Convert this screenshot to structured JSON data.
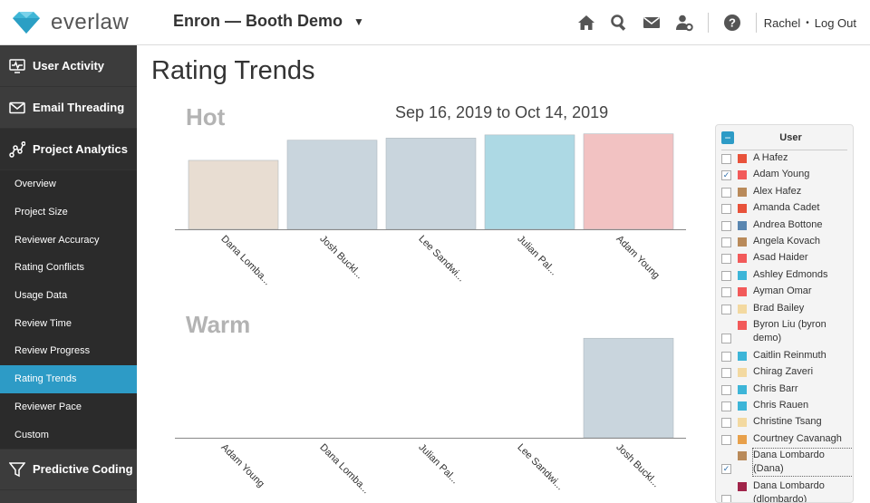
{
  "app": {
    "logo_text": "everlaw",
    "project_name": "Enron — Booth Demo",
    "user_name": "Rachel",
    "separator": "•",
    "logout_label": "Log Out"
  },
  "sidebar": {
    "main_items": [
      {
        "label": "User Activity",
        "icon": "monitor-icon"
      },
      {
        "label": "Email Threading",
        "icon": "envelope-icon"
      },
      {
        "label": "Project Analytics",
        "icon": "analytics-icon"
      }
    ],
    "sub_items": [
      {
        "label": "Overview",
        "active": false
      },
      {
        "label": "Project Size",
        "active": false
      },
      {
        "label": "Reviewer Accuracy",
        "active": false
      },
      {
        "label": "Rating Conflicts",
        "active": false
      },
      {
        "label": "Usage Data",
        "active": false
      },
      {
        "label": "Review Time",
        "active": false
      },
      {
        "label": "Review Progress",
        "active": false
      },
      {
        "label": "Rating Trends",
        "active": true
      },
      {
        "label": "Reviewer Pace",
        "active": false
      },
      {
        "label": "Custom",
        "active": false
      }
    ],
    "bottom_item": {
      "label": "Predictive Coding",
      "icon": "funnel-icon"
    }
  },
  "page": {
    "title": "Rating Trends",
    "date_range": "Sep 16, 2019 to Oct 14, 2019"
  },
  "chart_data": [
    {
      "type": "bar",
      "title": "Hot",
      "categories": [
        "Dana Lomba...",
        "Josh Buckl...",
        "Lee Sandwi...",
        "Julian Pal...",
        "Adam Young"
      ],
      "values": [
        0.65,
        0.84,
        0.86,
        0.89,
        0.9
      ],
      "colors": [
        "#e8ddd2",
        "#c9d5dd",
        "#c9d5dd",
        "#add9e4",
        "#f2c2c2"
      ]
    },
    {
      "type": "bar",
      "title": "Warm",
      "categories": [
        "Adam Young",
        "Dana Lomba...",
        "Julian Pal...",
        "Lee Sandwi...",
        "Josh Buckl..."
      ],
      "values": [
        0,
        0,
        0,
        0,
        0.98
      ],
      "colors": [
        "#c9d5dd",
        "#c9d5dd",
        "#c9d5dd",
        "#c9d5dd",
        "#c9d5dd"
      ]
    }
  ],
  "legend": {
    "header": "User",
    "items": [
      {
        "name": "A Hafez",
        "color": "#e8523a",
        "checked": false
      },
      {
        "name": "Adam Young",
        "color": "#f25a5a",
        "checked": true
      },
      {
        "name": "Alex Hafez",
        "color": "#b98a5a",
        "checked": false
      },
      {
        "name": "Amanda Cadet",
        "color": "#e8523a",
        "checked": false
      },
      {
        "name": "Andrea Bottone",
        "color": "#5a86b0",
        "checked": false
      },
      {
        "name": "Angela Kovach",
        "color": "#b98a5a",
        "checked": false
      },
      {
        "name": "Asad Haider",
        "color": "#f25a5a",
        "checked": false
      },
      {
        "name": "Ashley Edmonds",
        "color": "#3db5d8",
        "checked": false
      },
      {
        "name": "Ayman Omar",
        "color": "#f25a5a",
        "checked": false
      },
      {
        "name": "Brad Bailey",
        "color": "#f3d9a0",
        "checked": false
      },
      {
        "name": "Byron Liu (byron demo)",
        "color": "#f25a5a",
        "checked": false
      },
      {
        "name": "Caitlin Reinmuth",
        "color": "#3db5d8",
        "checked": false
      },
      {
        "name": "Chirag Zaveri",
        "color": "#f3d9a0",
        "checked": false
      },
      {
        "name": "Chris Barr",
        "color": "#3db5d8",
        "checked": false
      },
      {
        "name": "Chris Rauen",
        "color": "#3db5d8",
        "checked": false
      },
      {
        "name": "Christine Tsang",
        "color": "#f3d9a0",
        "checked": false
      },
      {
        "name": "Courtney Cavanagh",
        "color": "#e8a04a",
        "checked": false
      },
      {
        "name": "Dana Lombardo (Dana)",
        "color": "#b98a5a",
        "checked": true
      },
      {
        "name": "Dana Lombardo (dlombardo)",
        "color": "#a0244a",
        "checked": false
      }
    ]
  }
}
